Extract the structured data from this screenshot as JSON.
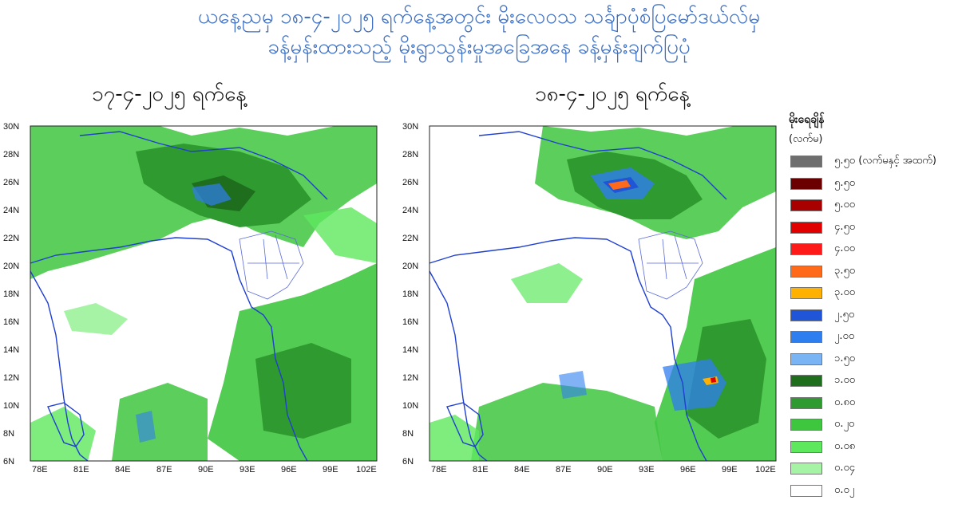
{
  "header": {
    "title_line1": "ယနေ့ညမှ ၁၈-၄-၂၀၂၅ ရက်နေ့အတွင်း မိုးလေဝသ သင်္ချာပုံစံပြမော်ဒယ်လ်မှ",
    "title_line2": "ခန့်မှန်းထားသည့် မိုးရွာသွန်းမှုအခြေအနေ ခန့်မှန်းချက်ပြပုံ"
  },
  "panels": [
    {
      "subtitle": "၁၇-၄-၂၀၂၅ ရက်နေ့"
    },
    {
      "subtitle": "၁၈-၄-၂၀၂၅ ရက်နေ့"
    }
  ],
  "axes": {
    "lat_labels": [
      "30N",
      "28N",
      "26N",
      "24N",
      "22N",
      "20N",
      "18N",
      "16N",
      "14N",
      "12N",
      "10N",
      "8N",
      "6N"
    ],
    "lon_labels": [
      "78E",
      "81E",
      "84E",
      "87E",
      "90E",
      "93E",
      "96E",
      "99E",
      "102E"
    ]
  },
  "legend": {
    "title": "မိုးရေချိန်",
    "unit": "(လက်မ)",
    "items": [
      {
        "label": "၅.၅၀ (လက်မနှင့် အထက်)",
        "color": "#6e6e6e"
      },
      {
        "label": "၅.၅၀",
        "color": "#6b0000"
      },
      {
        "label": "၅.၀၀",
        "color": "#a80000"
      },
      {
        "label": "၄.၅၀",
        "color": "#e00000"
      },
      {
        "label": "၄.၀၀",
        "color": "#ff1a1a"
      },
      {
        "label": "၃.၅၀",
        "color": "#ff6a1a"
      },
      {
        "label": "၃.၀၀",
        "color": "#ffb000"
      },
      {
        "label": "၂.၅၀",
        "color": "#1f55d6"
      },
      {
        "label": "၂.၀၀",
        "color": "#2f7ef0"
      },
      {
        "label": "၁.၅၀",
        "color": "#7ab4f5"
      },
      {
        "label": "၁.၀၀",
        "color": "#1e6e1e"
      },
      {
        "label": "၀.၈၀",
        "color": "#2f9a2f"
      },
      {
        "label": "၀.၂၀",
        "color": "#3fc63f"
      },
      {
        "label": "၀.၀၈",
        "color": "#5ee85e"
      },
      {
        "label": "၀.၀၄",
        "color": "#a6f3a6"
      },
      {
        "label": "၀.၀၂",
        "color": "#ffffff"
      }
    ]
  }
}
